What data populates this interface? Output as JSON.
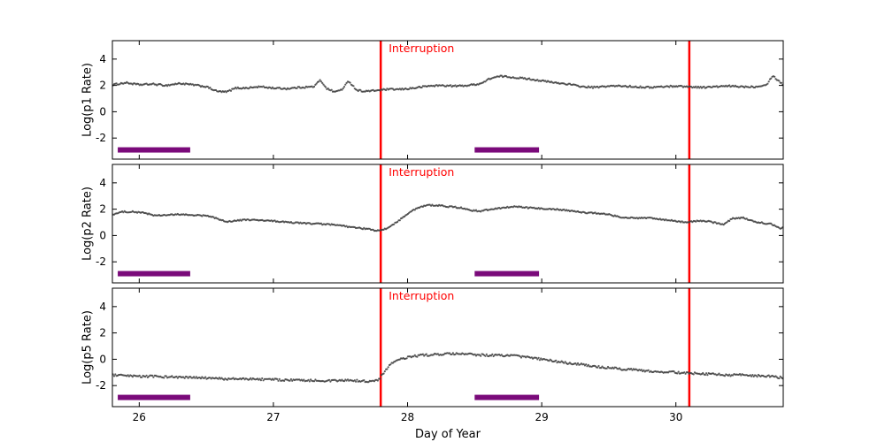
{
  "xlabel": "Day of Year",
  "axis": {
    "xlim": [
      25.8,
      30.8
    ],
    "ylim": [
      -3.6,
      5.4
    ],
    "xticks": [
      26,
      27,
      28,
      29,
      30
    ],
    "yticks": [
      -2,
      0,
      2,
      4
    ]
  },
  "colors": {
    "points": "#3d3d3d",
    "interruption": "#ff0000",
    "bar": "#7a0a7a",
    "axis": "#000000",
    "background": "#ffffff"
  },
  "chart_data": [
    {
      "type": "scatter",
      "ylabel": "Log(p1 Rate)",
      "annotation": {
        "text": "Interruption",
        "x": 27.84,
        "y": 4.85
      },
      "interruption_lines": [
        27.8,
        30.1
      ],
      "bars": [
        {
          "x0": 25.84,
          "x1": 26.38,
          "y": -2.9
        },
        {
          "x0": 28.5,
          "x1": 28.98,
          "y": -2.9
        }
      ],
      "noise": 0.06,
      "points": [
        [
          25.8,
          2.05
        ],
        [
          25.9,
          2.2
        ],
        [
          26.0,
          2.05
        ],
        [
          26.1,
          2.1
        ],
        [
          26.2,
          2.0
        ],
        [
          26.3,
          2.15
        ],
        [
          26.4,
          2.05
        ],
        [
          26.5,
          1.9
        ],
        [
          26.58,
          1.55
        ],
        [
          26.65,
          1.5
        ],
        [
          26.72,
          1.8
        ],
        [
          26.8,
          1.8
        ],
        [
          26.9,
          1.9
        ],
        [
          27.0,
          1.8
        ],
        [
          27.1,
          1.75
        ],
        [
          27.2,
          1.85
        ],
        [
          27.3,
          1.9
        ],
        [
          27.35,
          2.4
        ],
        [
          27.4,
          1.75
        ],
        [
          27.46,
          1.5
        ],
        [
          27.52,
          1.75
        ],
        [
          27.56,
          2.35
        ],
        [
          27.62,
          1.65
        ],
        [
          27.68,
          1.55
        ],
        [
          27.75,
          1.6
        ],
        [
          27.85,
          1.7
        ],
        [
          27.95,
          1.7
        ],
        [
          28.05,
          1.8
        ],
        [
          28.15,
          1.95
        ],
        [
          28.25,
          2.0
        ],
        [
          28.35,
          1.95
        ],
        [
          28.45,
          2.0
        ],
        [
          28.55,
          2.15
        ],
        [
          28.62,
          2.55
        ],
        [
          28.7,
          2.7
        ],
        [
          28.8,
          2.6
        ],
        [
          28.9,
          2.5
        ],
        [
          29.0,
          2.35
        ],
        [
          29.1,
          2.2
        ],
        [
          29.2,
          2.1
        ],
        [
          29.3,
          1.9
        ],
        [
          29.4,
          1.85
        ],
        [
          29.5,
          1.95
        ],
        [
          29.6,
          1.95
        ],
        [
          29.7,
          1.9
        ],
        [
          29.8,
          1.85
        ],
        [
          29.9,
          1.9
        ],
        [
          30.0,
          1.95
        ],
        [
          30.1,
          1.9
        ],
        [
          30.2,
          1.85
        ],
        [
          30.3,
          1.9
        ],
        [
          30.4,
          1.95
        ],
        [
          30.5,
          1.9
        ],
        [
          30.6,
          1.9
        ],
        [
          30.68,
          2.1
        ],
        [
          30.72,
          2.75
        ],
        [
          30.76,
          2.4
        ],
        [
          30.8,
          2.05
        ]
      ]
    },
    {
      "type": "scatter",
      "ylabel": "Log(p2 Rate)",
      "annotation": {
        "text": "Interruption",
        "x": 27.84,
        "y": 4.85
      },
      "interruption_lines": [
        27.8,
        30.1
      ],
      "bars": [
        {
          "x0": 25.84,
          "x1": 26.38,
          "y": -2.9
        },
        {
          "x0": 28.5,
          "x1": 28.98,
          "y": -2.9
        }
      ],
      "noise": 0.05,
      "points": [
        [
          25.8,
          1.6
        ],
        [
          25.88,
          1.8
        ],
        [
          25.95,
          1.8
        ],
        [
          26.05,
          1.7
        ],
        [
          26.12,
          1.5
        ],
        [
          26.2,
          1.55
        ],
        [
          26.3,
          1.6
        ],
        [
          26.4,
          1.55
        ],
        [
          26.5,
          1.5
        ],
        [
          26.58,
          1.3
        ],
        [
          26.64,
          1.05
        ],
        [
          26.7,
          1.1
        ],
        [
          26.8,
          1.2
        ],
        [
          26.9,
          1.15
        ],
        [
          27.0,
          1.1
        ],
        [
          27.1,
          1.0
        ],
        [
          27.2,
          0.95
        ],
        [
          27.3,
          0.9
        ],
        [
          27.4,
          0.85
        ],
        [
          27.5,
          0.75
        ],
        [
          27.6,
          0.6
        ],
        [
          27.7,
          0.5
        ],
        [
          27.78,
          0.35
        ],
        [
          27.84,
          0.5
        ],
        [
          27.9,
          0.9
        ],
        [
          27.97,
          1.4
        ],
        [
          28.03,
          1.85
        ],
        [
          28.08,
          2.1
        ],
        [
          28.14,
          2.3
        ],
        [
          28.22,
          2.3
        ],
        [
          28.3,
          2.2
        ],
        [
          28.4,
          2.1
        ],
        [
          28.48,
          1.9
        ],
        [
          28.55,
          1.85
        ],
        [
          28.62,
          2.0
        ],
        [
          28.7,
          2.1
        ],
        [
          28.8,
          2.2
        ],
        [
          28.9,
          2.1
        ],
        [
          29.0,
          2.05
        ],
        [
          29.1,
          2.0
        ],
        [
          29.2,
          1.9
        ],
        [
          29.3,
          1.75
        ],
        [
          29.4,
          1.7
        ],
        [
          29.5,
          1.6
        ],
        [
          29.58,
          1.4
        ],
        [
          29.65,
          1.35
        ],
        [
          29.72,
          1.3
        ],
        [
          29.8,
          1.35
        ],
        [
          29.9,
          1.2
        ],
        [
          30.0,
          1.1
        ],
        [
          30.08,
          1.0
        ],
        [
          30.15,
          1.1
        ],
        [
          30.22,
          1.1
        ],
        [
          30.3,
          0.95
        ],
        [
          30.36,
          0.85
        ],
        [
          30.42,
          1.3
        ],
        [
          30.5,
          1.35
        ],
        [
          30.58,
          1.05
        ],
        [
          30.65,
          0.95
        ],
        [
          30.72,
          0.85
        ],
        [
          30.78,
          0.55
        ],
        [
          30.8,
          0.6
        ]
      ]
    },
    {
      "type": "scatter",
      "ylabel": "Log(p5 Rate)",
      "annotation": {
        "text": "Interruption",
        "x": 27.84,
        "y": 4.85
      },
      "interruption_lines": [
        27.8,
        30.1
      ],
      "bars": [
        {
          "x0": 25.84,
          "x1": 26.38,
          "y": -2.9
        },
        {
          "x0": 28.5,
          "x1": 28.98,
          "y": -2.9
        }
      ],
      "noise": 0.08,
      "points": [
        [
          25.8,
          -1.2
        ],
        [
          25.95,
          -1.3
        ],
        [
          26.1,
          -1.3
        ],
        [
          26.25,
          -1.35
        ],
        [
          26.4,
          -1.4
        ],
        [
          26.55,
          -1.45
        ],
        [
          26.7,
          -1.5
        ],
        [
          26.85,
          -1.5
        ],
        [
          27.0,
          -1.55
        ],
        [
          27.15,
          -1.6
        ],
        [
          27.3,
          -1.6
        ],
        [
          27.45,
          -1.65
        ],
        [
          27.55,
          -1.6
        ],
        [
          27.65,
          -1.65
        ],
        [
          27.74,
          -1.7
        ],
        [
          27.79,
          -1.5
        ],
        [
          27.83,
          -0.9
        ],
        [
          27.87,
          -0.4
        ],
        [
          27.92,
          -0.1
        ],
        [
          28.0,
          0.15
        ],
        [
          28.1,
          0.3
        ],
        [
          28.2,
          0.35
        ],
        [
          28.3,
          0.4
        ],
        [
          28.4,
          0.4
        ],
        [
          28.5,
          0.35
        ],
        [
          28.6,
          0.3
        ],
        [
          28.7,
          0.3
        ],
        [
          28.8,
          0.25
        ],
        [
          28.9,
          0.15
        ],
        [
          29.0,
          0.0
        ],
        [
          29.1,
          -0.15
        ],
        [
          29.2,
          -0.3
        ],
        [
          29.3,
          -0.4
        ],
        [
          29.4,
          -0.55
        ],
        [
          29.5,
          -0.65
        ],
        [
          29.6,
          -0.75
        ],
        [
          29.7,
          -0.8
        ],
        [
          29.8,
          -0.9
        ],
        [
          29.9,
          -0.95
        ],
        [
          30.0,
          -1.0
        ],
        [
          30.1,
          -1.05
        ],
        [
          30.2,
          -1.1
        ],
        [
          30.3,
          -1.15
        ],
        [
          30.4,
          -1.2
        ],
        [
          30.5,
          -1.2
        ],
        [
          30.6,
          -1.25
        ],
        [
          30.7,
          -1.3
        ],
        [
          30.8,
          -1.4
        ]
      ]
    }
  ]
}
